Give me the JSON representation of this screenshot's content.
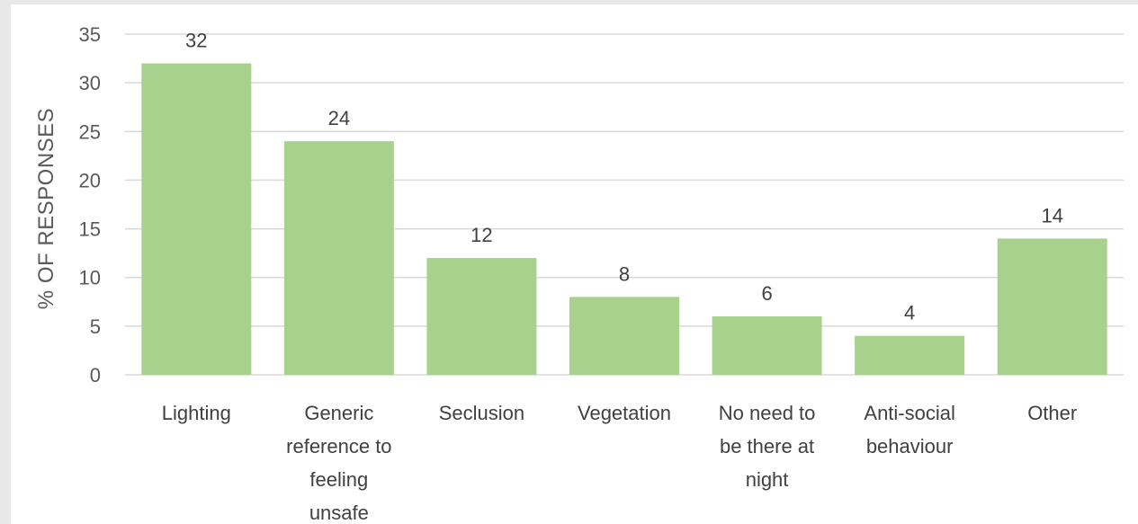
{
  "chart_data": {
    "type": "bar",
    "title": "",
    "xlabel": "",
    "ylabel": "% OF RESPONSES",
    "ylim": [
      0,
      35
    ],
    "yticks": [
      0,
      5,
      10,
      15,
      20,
      25,
      30,
      35
    ],
    "grid": true,
    "bar_color": "#a9d18e",
    "categories": [
      [
        "Lighting"
      ],
      [
        "Generic",
        "reference to",
        "feeling",
        "unsafe"
      ],
      [
        "Seclusion"
      ],
      [
        "Vegetation"
      ],
      [
        "No need to",
        "be there at",
        "night"
      ],
      [
        "Anti-social",
        "behaviour"
      ],
      [
        "Other"
      ]
    ],
    "values": [
      32,
      24,
      12,
      8,
      6,
      4,
      14
    ]
  }
}
